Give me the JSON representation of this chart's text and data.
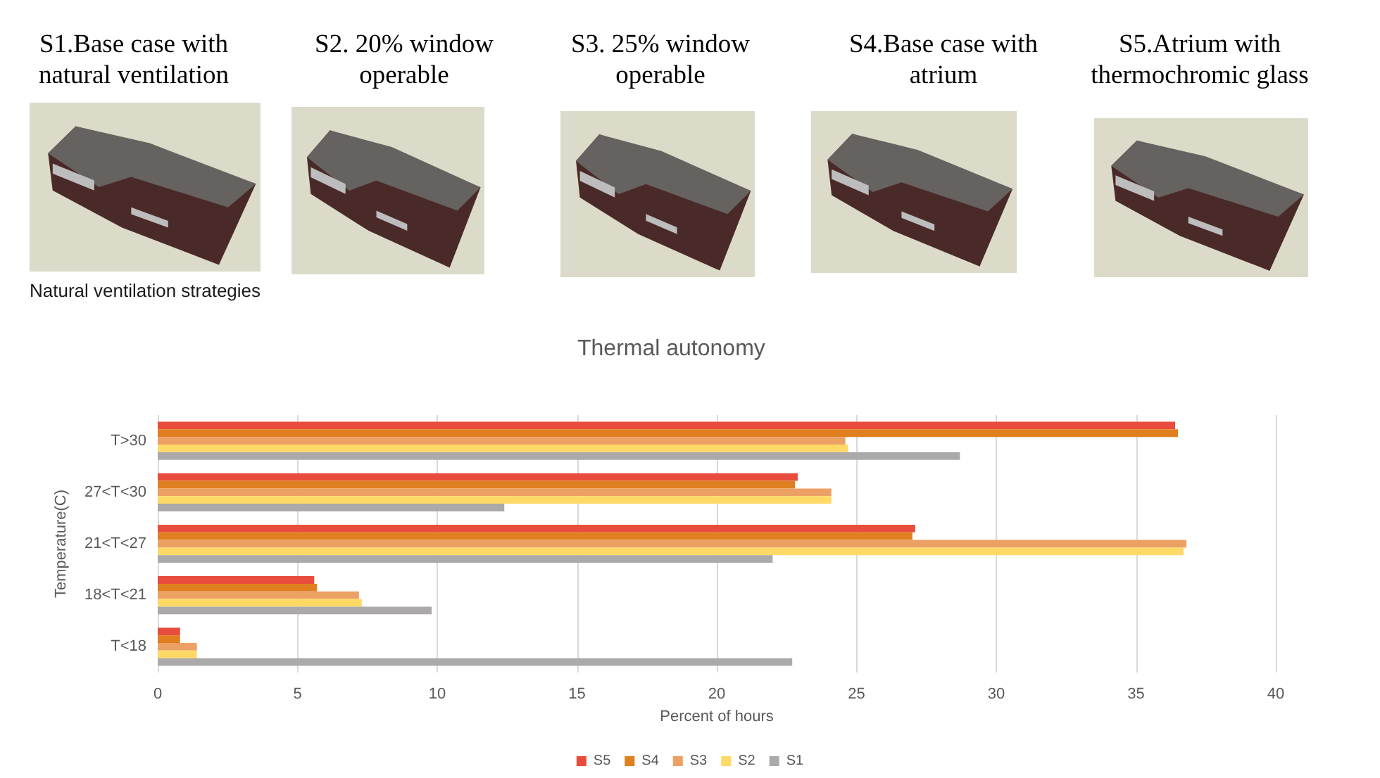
{
  "chart_data": {
    "type": "bar",
    "orientation": "horizontal",
    "title": "Thermal autonomy",
    "xlabel": "Percent of hours",
    "ylabel": "Temperature(C)",
    "categories": [
      "T>30",
      "27<T<30",
      "21<T<27",
      "18<T<21",
      "T<18"
    ],
    "series": [
      {
        "name": "S5",
        "color": "#e74c3c",
        "values": [
          36.4,
          22.9,
          27.1,
          5.6,
          0.8
        ]
      },
      {
        "name": "S4",
        "color": "#e07f1f",
        "values": [
          36.5,
          22.8,
          27.0,
          5.7,
          0.8
        ]
      },
      {
        "name": "S3",
        "color": "#eda064",
        "values": [
          24.6,
          24.1,
          36.8,
          7.2,
          1.4
        ]
      },
      {
        "name": "S2",
        "color": "#ffd966",
        "values": [
          24.7,
          24.1,
          36.7,
          7.3,
          1.4
        ]
      },
      {
        "name": "S1",
        "color": "#aba9a9",
        "values": [
          28.7,
          12.4,
          22.0,
          9.8,
          22.7
        ]
      }
    ],
    "xlim": [
      0,
      40
    ],
    "xticks": [
      0,
      5,
      10,
      15,
      20,
      25,
      30,
      35,
      40
    ],
    "grid": "x",
    "legend": "bottom",
    "annotations": [
      "S1.Base case with natural ventilation",
      "S2. 20% window operable",
      "S3. 25% window operable",
      "S4.Base case with atrium",
      "S5.Atrium with thermochromic glass",
      "Natural ventilation strategies"
    ]
  }
}
